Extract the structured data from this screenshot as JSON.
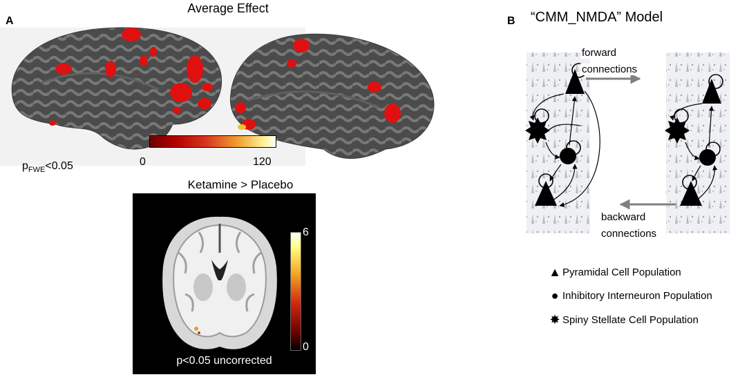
{
  "panel_a": {
    "letter": "A",
    "title": "Average Effect",
    "threshold_label_p": "p",
    "threshold_label_sub": "FWE",
    "threshold_label_value": "<0.05",
    "colorbar_min": "0",
    "colorbar_max": "120",
    "ketamine_title": "Ketamine > Placebo",
    "mri_colorbar_max": "6",
    "mri_colorbar_min": "0",
    "mri_label": "p<0.05 uncorrected"
  },
  "panel_b": {
    "letter": "B",
    "title": "“CMM_NMDA” Model",
    "forward_label_1": "forward",
    "forward_label_2": "connections",
    "backward_label_1": "backward",
    "backward_label_2": "connections",
    "legend": [
      {
        "symbol": "triangle",
        "label": "Pyramidal Cell Population"
      },
      {
        "symbol": "circle",
        "label": "Inhibitory Interneuron Population"
      },
      {
        "symbol": "star",
        "label": "Spiny Stellate Cell Population"
      }
    ]
  },
  "colors": {
    "activation_red": "#e01010",
    "cortex_dark": "#4a4a4a",
    "cortex_light": "#7a7a7a",
    "connection_arrow": "#808080"
  }
}
